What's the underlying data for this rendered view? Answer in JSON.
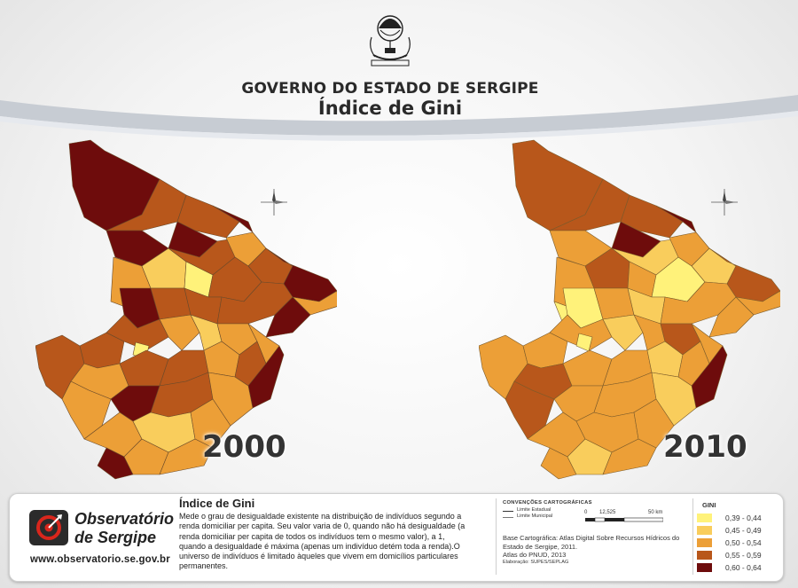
{
  "header": {
    "government": "GOVERNO DO ESTADO DE SERGIPE",
    "title": "Índice de Gini"
  },
  "maps": [
    {
      "year": "2000"
    },
    {
      "year": "2010"
    }
  ],
  "description": {
    "title": "Índice de Gini",
    "text": "Mede o grau de desigualdade existente na distribuição de indivíduos segundo a renda domiciliar per capita. Seu valor varia de 0, quando não há desigualdade (a renda domiciliar per capita de todos os indivíduos tem o mesmo valor), a 1, quando a desigualdade é máxima (apenas um indivíduo detém toda a renda).O universo de indivíduos é limitado àqueles que vivem em domicílios particulares permanentes."
  },
  "branding": {
    "name_line1": "Observatório",
    "name_line2": "de Sergipe",
    "url": "www.observatorio.se.gov.br"
  },
  "conventions": {
    "title": "CONVENÇÕES CARTOGRÁFICAS",
    "items": [
      "Limite Estadual",
      "Limite Municipal"
    ],
    "scale": [
      "0",
      "12,525",
      "50 km"
    ]
  },
  "sources": {
    "base": "Base Cartográfica: Atlas Digital Sobre Recursos Hídricos do Estado de Sergipe, 2011.",
    "atlas": "Atlas do PNUD, 2013",
    "elaboration": "Elaboração: SUPES/SEPLAG"
  },
  "legend": {
    "title": "GINI",
    "classes": [
      {
        "label": "0,39 - 0,44",
        "color": "#fff27a"
      },
      {
        "label": "0,45 - 0,49",
        "color": "#f9cd5c"
      },
      {
        "label": "0,50 - 0,54",
        "color": "#ec9f37"
      },
      {
        "label": "0,55 - 0,59",
        "color": "#b8571b"
      },
      {
        "label": "0,60 - 0,64",
        "color": "#6e0c0c"
      }
    ]
  }
}
